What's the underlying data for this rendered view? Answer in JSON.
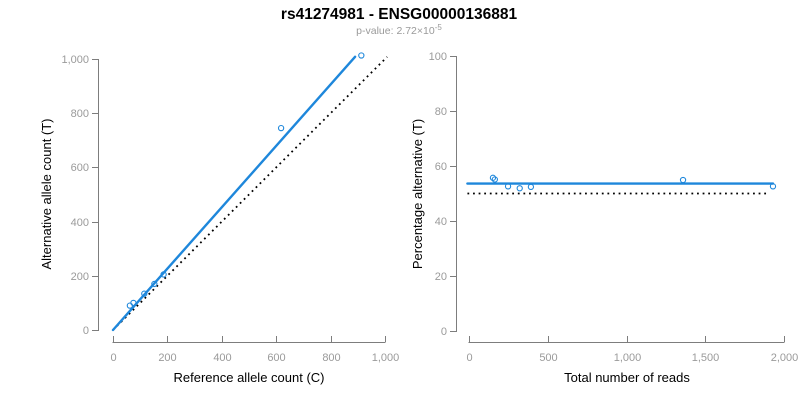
{
  "header": {
    "title": "rs41274981 - ENSG00000136881",
    "pvalue_label": "p-value: 2.72×10",
    "pvalue_exponent": "-5"
  },
  "colors": {
    "fit_line": "#1E87DB",
    "marker": "#1E87DB",
    "reference_line": "#000000",
    "axis_line": "#7d7d7d",
    "tick_text": "#9a9a9a",
    "axis_label_text": "#000000",
    "title_text": "#000000",
    "subtitle_text": "#9a9a9a",
    "background": "#FFFFFF"
  },
  "chart_data": [
    {
      "id": "allele-counts",
      "type": "scatter",
      "xlabel": "Reference allele count (C)",
      "ylabel": "Alternative allele count (T)",
      "xlim": [
        0,
        1000
      ],
      "ylim": [
        0,
        1000
      ],
      "xticks": [
        0,
        200,
        400,
        600,
        800,
        1000
      ],
      "xtick_labels": [
        "0",
        "200",
        "400",
        "600",
        "800",
        "1,000"
      ],
      "yticks": [
        0,
        200,
        400,
        600,
        800,
        1000
      ],
      "ytick_labels": [
        "0",
        "200",
        "400",
        "600",
        "800",
        "1,000"
      ],
      "points": [
        [
          62,
          90
        ],
        [
          75,
          100
        ],
        [
          115,
          134
        ],
        [
          152,
          170
        ],
        [
          186,
          205
        ],
        [
          618,
          745
        ],
        [
          913,
          1013
        ]
      ],
      "fit_line": {
        "x": [
          0,
          890
        ],
        "y": [
          0,
          1008
        ]
      },
      "dotted_line": {
        "x": [
          0,
          1008
        ],
        "y": [
          0,
          1008
        ]
      },
      "legend": null,
      "grid": false
    },
    {
      "id": "percentage-vs-reads",
      "type": "scatter",
      "xlabel": "Total number of reads",
      "ylabel": "Percentage alternative (T)",
      "xlim": [
        0,
        2000
      ],
      "ylim": [
        0,
        100
      ],
      "xticks": [
        0,
        500,
        1000,
        1500,
        2000
      ],
      "xtick_labels": [
        "0",
        "500",
        "1,000",
        "1,500",
        "2,000"
      ],
      "yticks": [
        0,
        20,
        40,
        60,
        80,
        100
      ],
      "ytick_labels": [
        "0",
        "20",
        "40",
        "60",
        "80",
        "100"
      ],
      "points": [
        [
          152,
          55.7
        ],
        [
          164,
          55.1
        ],
        [
          248,
          52.6
        ],
        [
          322,
          51.9
        ],
        [
          393,
          52.4
        ],
        [
          1359,
          54.9
        ],
        [
          1930,
          52.6
        ]
      ],
      "fit_line": {
        "x": [
          -10,
          1930
        ],
        "y": [
          53.6,
          53.6
        ]
      },
      "dotted_line": {
        "x": [
          -10,
          1900
        ],
        "y": [
          50,
          50
        ]
      },
      "legend": null,
      "grid": false
    }
  ]
}
